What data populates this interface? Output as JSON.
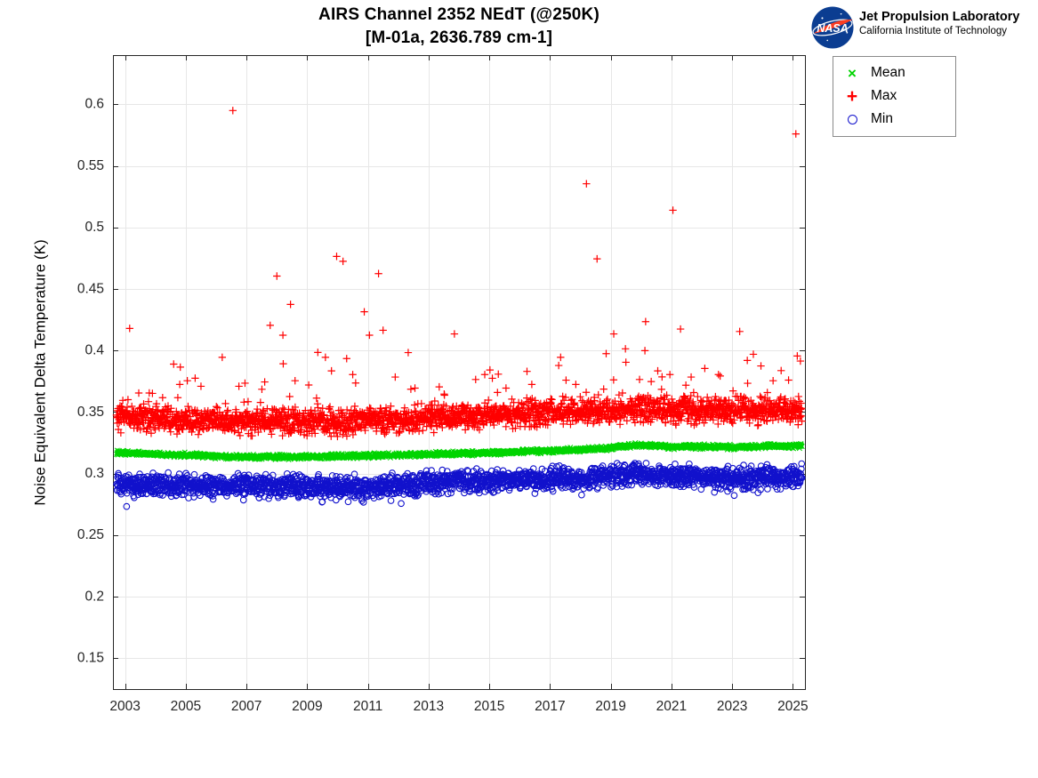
{
  "branding": {
    "logo_text": "NASA",
    "org_name": "Jet Propulsion Laboratory",
    "org_sub": "California Institute of Technology",
    "logo_blue": "#0b3d91",
    "logo_red": "#fc3d21"
  },
  "chart_data": {
    "type": "scatter",
    "title": "AIRS Channel 2352 NEdT (@250K)",
    "subtitle": "[M-01a, 2636.789 cm-1]",
    "xlabel": "",
    "ylabel": "Noise Equivalent Delta Temperature (K)",
    "xlim": [
      2002.6,
      2025.4
    ],
    "ylim": [
      0.125,
      0.64
    ],
    "xticks": [
      2003,
      2005,
      2007,
      2009,
      2011,
      2013,
      2015,
      2017,
      2019,
      2021,
      2023,
      2025
    ],
    "yticks": [
      0.15,
      0.2,
      0.25,
      0.3,
      0.35,
      0.4,
      0.45,
      0.5,
      0.55,
      0.6
    ],
    "grid": true,
    "legend": {
      "position": "outside-top-right",
      "entries": [
        {
          "label": "Mean",
          "marker": "x",
          "glyph": "×",
          "color": "#00d400"
        },
        {
          "label": "Max",
          "marker": "+",
          "glyph": "+",
          "color": "#ff0000"
        },
        {
          "label": "Min",
          "marker": "o",
          "glyph": "",
          "color": "#1111cc"
        }
      ]
    },
    "sampling": {
      "x_start": 2002.72,
      "x_end": 2025.3,
      "n": 2400,
      "seed": 7
    },
    "series": [
      {
        "name": "Max",
        "marker": "+",
        "color": "#ff0000",
        "jitter": 0.005,
        "tail_up_prob": 0.07,
        "tail_up_max": 0.024,
        "spike_prob": 0.005,
        "spike_min": 0.012,
        "spike_max": 0.045,
        "trend": [
          [
            2002.72,
            0.3452
          ],
          [
            2004,
            0.3448
          ],
          [
            2005,
            0.344
          ],
          [
            2006,
            0.3435
          ],
          [
            2007,
            0.3428
          ],
          [
            2008,
            0.3425
          ],
          [
            2009,
            0.3428
          ],
          [
            2010,
            0.3422
          ],
          [
            2011,
            0.3432
          ],
          [
            2012,
            0.344
          ],
          [
            2013,
            0.3452
          ],
          [
            2014,
            0.3462
          ],
          [
            2015,
            0.3478
          ],
          [
            2016,
            0.3488
          ],
          [
            2017,
            0.3495
          ],
          [
            2018,
            0.3505
          ],
          [
            2019,
            0.3515
          ],
          [
            2019.8,
            0.3528
          ],
          [
            2020.5,
            0.3522
          ],
          [
            2021,
            0.3515
          ],
          [
            2022,
            0.3512
          ],
          [
            2023,
            0.3505
          ],
          [
            2024,
            0.351
          ],
          [
            2025.3,
            0.3515
          ]
        ],
        "outliers": [
          [
            2003.15,
            0.418
          ],
          [
            2003.45,
            0.3655
          ],
          [
            2004.6,
            0.389
          ],
          [
            2004.8,
            0.3725
          ],
          [
            2005.05,
            0.3755
          ],
          [
            2005.5,
            0.371
          ],
          [
            2006.2,
            0.3945
          ],
          [
            2006.55,
            0.595
          ],
          [
            2006.75,
            0.371
          ],
          [
            2006.95,
            0.3735
          ],
          [
            2007.6,
            0.3745
          ],
          [
            2007.78,
            0.4205
          ],
          [
            2008.0,
            0.4605
          ],
          [
            2008.2,
            0.4125
          ],
          [
            2008.45,
            0.4375
          ],
          [
            2008.6,
            0.3755
          ],
          [
            2009.05,
            0.372
          ],
          [
            2009.35,
            0.3985
          ],
          [
            2009.6,
            0.3945
          ],
          [
            2009.8,
            0.3835
          ],
          [
            2009.97,
            0.4765
          ],
          [
            2010.18,
            0.4725
          ],
          [
            2010.3,
            0.3935
          ],
          [
            2010.5,
            0.3805
          ],
          [
            2010.88,
            0.4315
          ],
          [
            2011.05,
            0.4125
          ],
          [
            2011.35,
            0.4625
          ],
          [
            2011.5,
            0.4165
          ],
          [
            2011.9,
            0.3785
          ],
          [
            2012.55,
            0.3695
          ],
          [
            2013.35,
            0.3705
          ],
          [
            2013.85,
            0.4135
          ],
          [
            2014.55,
            0.3765
          ],
          [
            2014.85,
            0.3805
          ],
          [
            2015.1,
            0.3775
          ],
          [
            2015.55,
            0.3695
          ],
          [
            2016.4,
            0.3725
          ],
          [
            2017.35,
            0.3945
          ],
          [
            2017.85,
            0.3725
          ],
          [
            2018.2,
            0.5355
          ],
          [
            2018.55,
            0.4745
          ],
          [
            2018.85,
            0.3975
          ],
          [
            2019.1,
            0.4135
          ],
          [
            2019.5,
            0.3905
          ],
          [
            2019.95,
            0.3765
          ],
          [
            2020.15,
            0.4235
          ],
          [
            2020.55,
            0.3835
          ],
          [
            2020.95,
            0.3805
          ],
          [
            2021.05,
            0.514
          ],
          [
            2021.3,
            0.4175
          ],
          [
            2021.65,
            0.3785
          ],
          [
            2022.1,
            0.3855
          ],
          [
            2022.55,
            0.3805
          ],
          [
            2023.25,
            0.4155
          ],
          [
            2023.5,
            0.392
          ],
          [
            2023.7,
            0.397
          ],
          [
            2023.95,
            0.3875
          ],
          [
            2024.35,
            0.3755
          ],
          [
            2025.1,
            0.576
          ],
          [
            2025.25,
            0.3915
          ]
        ]
      },
      {
        "name": "Mean",
        "marker": "x",
        "color": "#00d400",
        "jitter": 0.0009,
        "trend": [
          [
            2002.72,
            0.3168
          ],
          [
            2004,
            0.316
          ],
          [
            2005,
            0.3152
          ],
          [
            2006,
            0.3142
          ],
          [
            2007,
            0.3135
          ],
          [
            2008,
            0.3135
          ],
          [
            2009,
            0.3138
          ],
          [
            2010,
            0.314
          ],
          [
            2011,
            0.3146
          ],
          [
            2012,
            0.315
          ],
          [
            2013,
            0.3157
          ],
          [
            2014,
            0.3163
          ],
          [
            2015,
            0.317
          ],
          [
            2016,
            0.3178
          ],
          [
            2017,
            0.3186
          ],
          [
            2018,
            0.3196
          ],
          [
            2019,
            0.321
          ],
          [
            2019.8,
            0.3232
          ],
          [
            2020.5,
            0.3226
          ],
          [
            2021,
            0.3218
          ],
          [
            2022,
            0.322
          ],
          [
            2023,
            0.3216
          ],
          [
            2024,
            0.322
          ],
          [
            2025.3,
            0.3226
          ]
        ]
      },
      {
        "name": "Min",
        "marker": "o",
        "color": "#1111cc",
        "jitter": 0.0042,
        "tail_down_prob": 0.05,
        "tail_down_max": 0.013,
        "trend": [
          [
            2002.72,
            0.2915
          ],
          [
            2004,
            0.291
          ],
          [
            2005,
            0.2903
          ],
          [
            2006,
            0.2905
          ],
          [
            2007,
            0.2906
          ],
          [
            2008,
            0.29
          ],
          [
            2009,
            0.2896
          ],
          [
            2010,
            0.2893
          ],
          [
            2011,
            0.29
          ],
          [
            2012,
            0.2912
          ],
          [
            2013,
            0.2924
          ],
          [
            2014,
            0.2934
          ],
          [
            2015,
            0.2944
          ],
          [
            2016,
            0.2952
          ],
          [
            2017,
            0.296
          ],
          [
            2018,
            0.297
          ],
          [
            2019,
            0.2982
          ],
          [
            2019.8,
            0.2998
          ],
          [
            2020.5,
            0.2992
          ],
          [
            2021,
            0.2984
          ],
          [
            2022,
            0.2974
          ],
          [
            2023,
            0.2966
          ],
          [
            2024,
            0.2972
          ],
          [
            2025.3,
            0.298
          ]
        ],
        "outliers": [
          [
            2003.3,
            0.2805
          ],
          [
            2004.15,
            0.2828
          ],
          [
            2005.9,
            0.2792
          ],
          [
            2006.35,
            0.2818
          ],
          [
            2006.9,
            0.2786
          ],
          [
            2008.25,
            0.2815
          ],
          [
            2009.5,
            0.2772
          ],
          [
            2009.95,
            0.2786
          ],
          [
            2010.35,
            0.2772
          ],
          [
            2010.8,
            0.278
          ],
          [
            2011.2,
            0.2802
          ],
          [
            2012.4,
            0.2838
          ],
          [
            2014.6,
            0.2866
          ],
          [
            2018.4,
            0.2902
          ],
          [
            2021.5,
            0.2915
          ],
          [
            2023.35,
            0.2872
          ]
        ]
      }
    ]
  }
}
